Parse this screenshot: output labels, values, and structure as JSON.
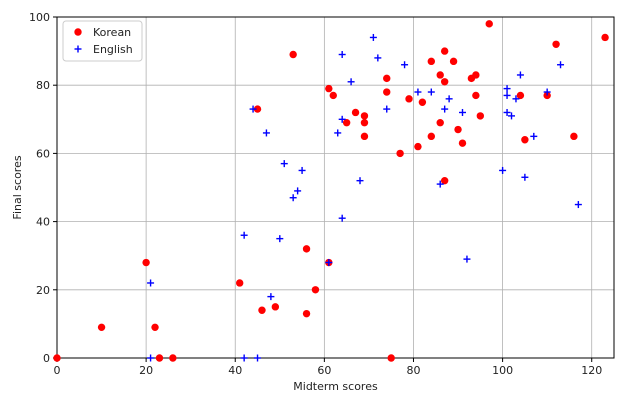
{
  "chart_data": {
    "type": "scatter",
    "title": "",
    "xlabel": "Midterm scores",
    "ylabel": "Final scores",
    "xlim": [
      0,
      125
    ],
    "ylim": [
      0,
      100
    ],
    "xticks": [
      0,
      20,
      40,
      60,
      80,
      100,
      120
    ],
    "yticks": [
      0,
      20,
      40,
      60,
      80,
      100
    ],
    "grid": true,
    "legend_position": "top-left",
    "series": [
      {
        "name": "Korean",
        "marker": "circle",
        "color": "#ff0000",
        "points": [
          [
            0,
            0
          ],
          [
            10,
            9
          ],
          [
            20,
            28
          ],
          [
            22,
            9
          ],
          [
            23,
            0
          ],
          [
            26,
            0
          ],
          [
            41,
            22
          ],
          [
            45,
            73
          ],
          [
            46,
            14
          ],
          [
            49,
            15
          ],
          [
            53,
            89
          ],
          [
            56,
            32
          ],
          [
            56,
            13
          ],
          [
            58,
            20
          ],
          [
            61,
            79
          ],
          [
            61,
            28
          ],
          [
            62,
            77
          ],
          [
            65,
            69
          ],
          [
            67,
            72
          ],
          [
            69,
            71
          ],
          [
            69,
            69
          ],
          [
            69,
            65
          ],
          [
            74,
            82
          ],
          [
            74,
            78
          ],
          [
            75,
            0
          ],
          [
            77,
            60
          ],
          [
            79,
            76
          ],
          [
            81,
            62
          ],
          [
            82,
            75
          ],
          [
            84,
            87
          ],
          [
            84,
            65
          ],
          [
            86,
            83
          ],
          [
            86,
            69
          ],
          [
            87,
            52
          ],
          [
            87,
            90
          ],
          [
            87,
            81
          ],
          [
            89,
            87
          ],
          [
            90,
            67
          ],
          [
            91,
            63
          ],
          [
            93,
            82
          ],
          [
            94,
            83
          ],
          [
            94,
            77
          ],
          [
            95,
            71
          ],
          [
            97,
            98
          ],
          [
            104,
            77
          ],
          [
            105,
            64
          ],
          [
            110,
            77
          ],
          [
            112,
            92
          ],
          [
            116,
            65
          ],
          [
            123,
            94
          ]
        ]
      },
      {
        "name": "English",
        "marker": "plus",
        "color": "#0000ff",
        "points": [
          [
            21,
            22
          ],
          [
            21,
            0
          ],
          [
            42,
            36
          ],
          [
            42,
            0
          ],
          [
            44,
            73
          ],
          [
            45,
            0
          ],
          [
            47,
            66
          ],
          [
            48,
            18
          ],
          [
            50,
            35
          ],
          [
            51,
            57
          ],
          [
            53,
            47
          ],
          [
            54,
            49
          ],
          [
            55,
            55
          ],
          [
            61,
            28
          ],
          [
            63,
            66
          ],
          [
            64,
            89
          ],
          [
            64,
            70
          ],
          [
            64,
            41
          ],
          [
            66,
            81
          ],
          [
            68,
            52
          ],
          [
            71,
            94
          ],
          [
            72,
            88
          ],
          [
            74,
            73
          ],
          [
            78,
            86
          ],
          [
            81,
            78
          ],
          [
            84,
            78
          ],
          [
            86,
            51
          ],
          [
            87,
            73
          ],
          [
            88,
            76
          ],
          [
            91,
            72
          ],
          [
            92,
            29
          ],
          [
            100,
            55
          ],
          [
            101,
            79
          ],
          [
            101,
            77
          ],
          [
            101,
            72
          ],
          [
            102,
            71
          ],
          [
            103,
            76
          ],
          [
            104,
            83
          ],
          [
            105,
            53
          ],
          [
            107,
            65
          ],
          [
            110,
            78
          ],
          [
            113,
            86
          ],
          [
            117,
            45
          ]
        ]
      }
    ]
  }
}
